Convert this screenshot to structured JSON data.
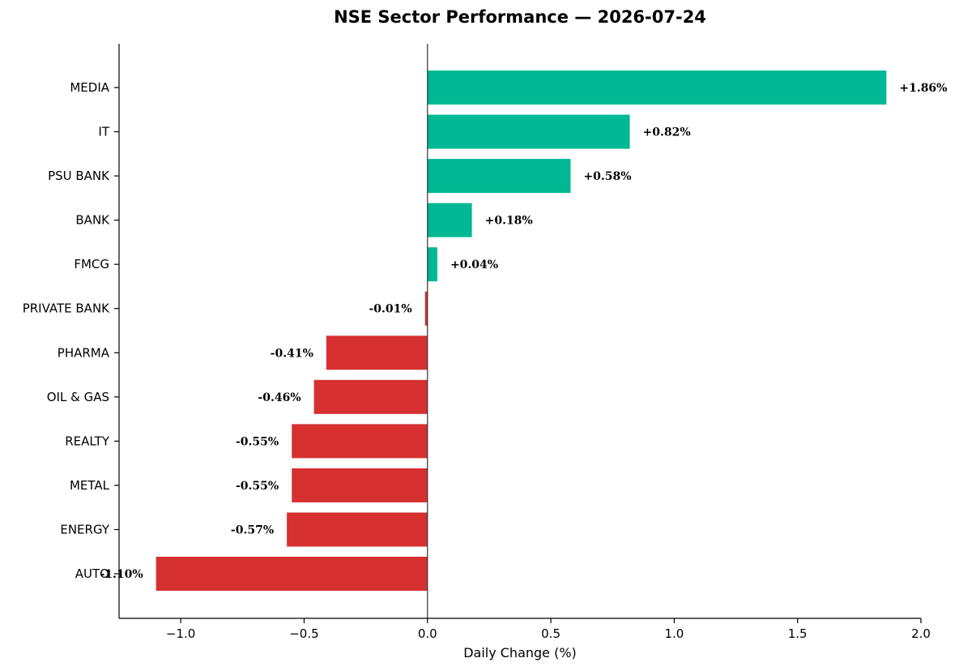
{
  "chart_data": {
    "type": "bar",
    "orientation": "horizontal",
    "title": "NSE Sector Performance — 2026-07-24",
    "xlabel": "Daily Change (%)",
    "ylabel": "",
    "xlim": [
      -1.25,
      2.0
    ],
    "xticks": [
      -1.0,
      -0.5,
      0.0,
      0.5,
      1.0,
      1.5,
      2.0
    ],
    "xtick_labels": [
      "−1.0",
      "−0.5",
      "0.0",
      "0.5",
      "1.0",
      "1.5",
      "2.0"
    ],
    "categories": [
      "MEDIA",
      "IT",
      "PSU BANK",
      "BANK",
      "FMCG",
      "PRIVATE BANK",
      "PHARMA",
      "OIL & GAS",
      "REALTY",
      "METAL",
      "ENERGY",
      "AUTO"
    ],
    "values": [
      1.86,
      0.82,
      0.58,
      0.18,
      0.04,
      -0.01,
      -0.41,
      -0.46,
      -0.55,
      -0.55,
      -0.57,
      -1.1
    ],
    "value_labels": [
      "+1.86%",
      "+0.82%",
      "+0.58%",
      "+0.18%",
      "+0.04%",
      "-0.01%",
      "-0.41%",
      "-0.46%",
      "-0.55%",
      "-0.55%",
      "-0.57%",
      "-1.10%"
    ],
    "colors": {
      "positive": "#00b894",
      "negative": "#d63031"
    },
    "grid": false,
    "legend": "none",
    "zero_line": true
  }
}
